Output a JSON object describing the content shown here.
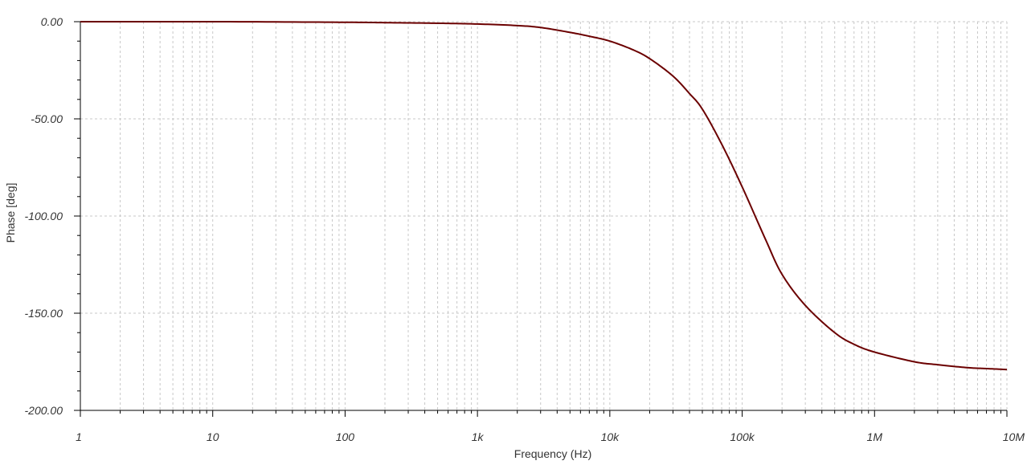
{
  "chart_data": {
    "type": "line",
    "x_scale": "log",
    "xlabel": "Frequency (Hz)",
    "ylabel": "Phase [deg]",
    "xlim": [
      1,
      10000000
    ],
    "ylim": [
      -200,
      0
    ],
    "grid": true,
    "line_color": "#6b0000",
    "x_ticks": [
      {
        "value": 1,
        "label": "1"
      },
      {
        "value": 10,
        "label": "10"
      },
      {
        "value": 100,
        "label": "100"
      },
      {
        "value": 1000,
        "label": "1k"
      },
      {
        "value": 10000,
        "label": "10k"
      },
      {
        "value": 100000,
        "label": "100k"
      },
      {
        "value": 1000000,
        "label": "1M"
      },
      {
        "value": 10000000,
        "label": "10M"
      }
    ],
    "y_ticks": [
      {
        "value": 0,
        "label": "0.00"
      },
      {
        "value": -50,
        "label": "-50.00"
      },
      {
        "value": -100,
        "label": "-100.00"
      },
      {
        "value": -150,
        "label": "-150.00"
      },
      {
        "value": -200,
        "label": "-200.00"
      }
    ],
    "series": [
      {
        "x": [
          1,
          10,
          100,
          200,
          500,
          1000,
          2000,
          3000,
          5000,
          7000,
          10000,
          15000,
          20000,
          30000,
          40000,
          50000,
          70000,
          100000,
          150000,
          200000,
          300000,
          500000,
          700000,
          1000000,
          2000000,
          3000000,
          5000000,
          7000000,
          10000000
        ],
        "y": [
          0,
          0,
          -0.3,
          -0.5,
          -0.8,
          -1.2,
          -2,
          -3,
          -5.5,
          -7.5,
          -10,
          -14.5,
          -19,
          -28,
          -37,
          -45,
          -63,
          -85,
          -112,
          -130,
          -146,
          -160,
          -166,
          -170,
          -175,
          -176.5,
          -178,
          -178.5,
          -179
        ]
      }
    ]
  }
}
